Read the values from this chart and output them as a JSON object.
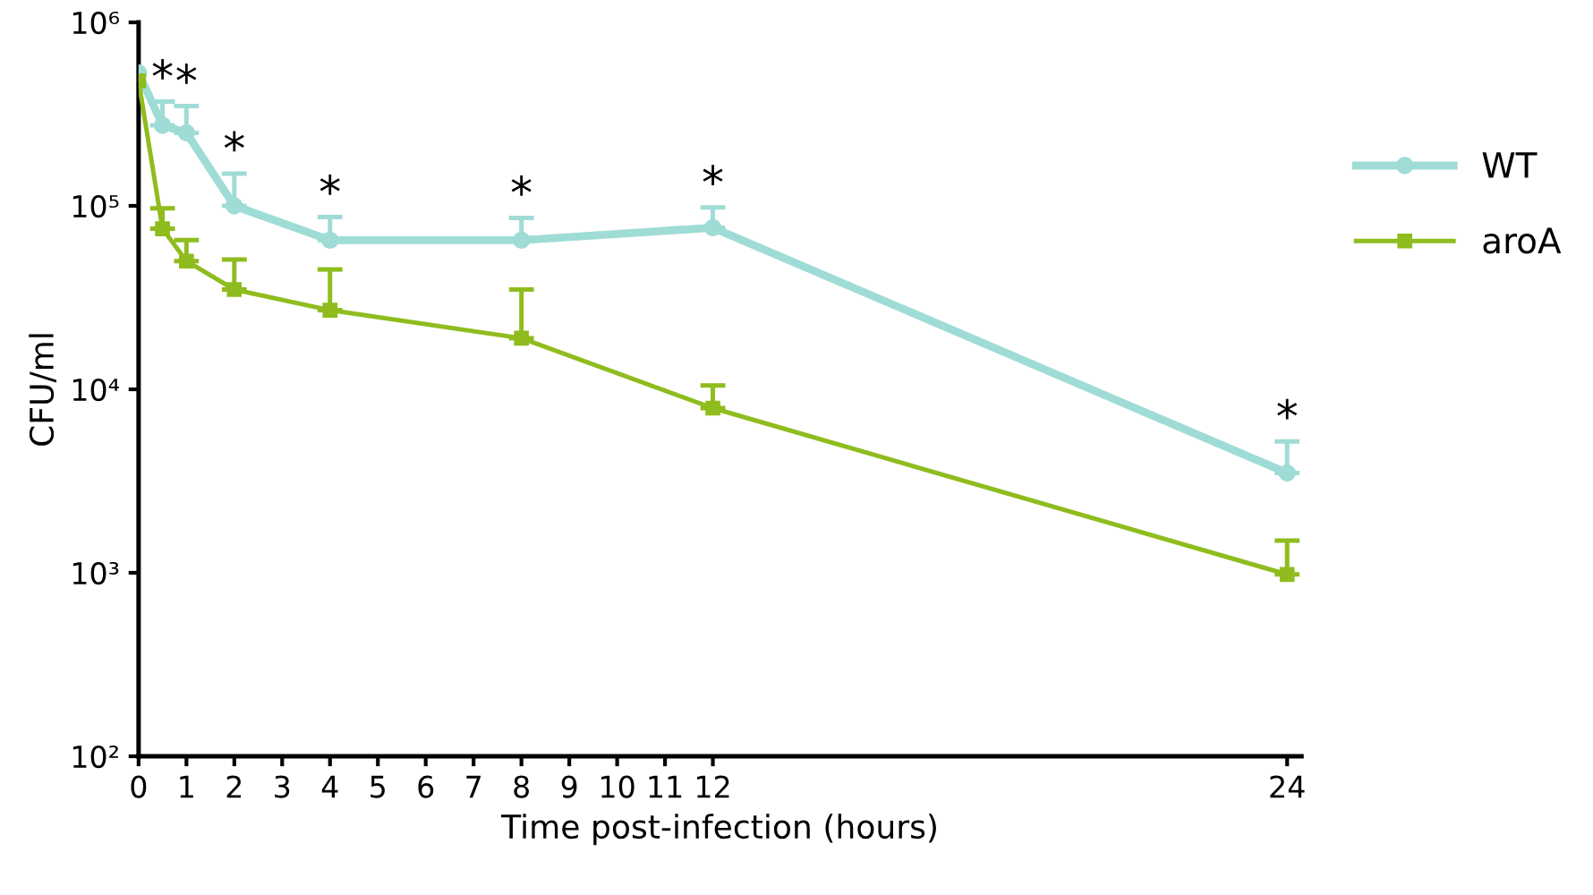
{
  "chart_data": {
    "type": "line",
    "xlabel": "Time post-infection (hours)",
    "ylabel": "CFU/ml",
    "log": "y",
    "grid": false,
    "legend": "right",
    "line_style": "solid",
    "xlim": [
      0,
      24.3
    ],
    "xticks": [
      0,
      1,
      2,
      3,
      4,
      5,
      6,
      7,
      8,
      9,
      10,
      11,
      12,
      24
    ],
    "ylim": [
      100,
      1000000
    ],
    "yticks": [
      {
        "value": 100,
        "label": "10²"
      },
      {
        "value": 1000,
        "label": "10³"
      },
      {
        "value": 10000,
        "label": "10⁴"
      },
      {
        "value": 100000,
        "label": "10⁵"
      },
      {
        "value": 1000000,
        "label": "10⁶"
      }
    ],
    "series": [
      {
        "name": "WT",
        "color": "#9fdcd6",
        "marker": "circle",
        "x": [
          0,
          0.5,
          1,
          2,
          4,
          8,
          12,
          24
        ],
        "values": [
          530000,
          275000,
          250000,
          100000,
          65000,
          65000,
          76000,
          3500
        ],
        "errors": [
          null,
          [
            275000,
            370000
          ],
          [
            250000,
            350000
          ],
          [
            100000,
            150000
          ],
          [
            65000,
            87000
          ],
          [
            65000,
            86000
          ],
          [
            76000,
            98000
          ],
          [
            3500,
            5200
          ]
        ]
      },
      {
        "name": "aroA",
        "color": "#8fbc1e",
        "marker": "square",
        "x": [
          0,
          0.5,
          1,
          2,
          4,
          8,
          12,
          24
        ],
        "values": [
          480000,
          75000,
          50000,
          35000,
          27000,
          19000,
          7900,
          980
        ],
        "errors": [
          null,
          [
            75000,
            97000
          ],
          [
            50000,
            65000
          ],
          [
            35000,
            51000
          ],
          [
            27000,
            45000
          ],
          [
            19000,
            35000
          ],
          [
            7900,
            10500
          ],
          [
            980,
            1500
          ]
        ]
      }
    ],
    "annotations": [
      {
        "text": "*",
        "x": 0.5,
        "y": 370000
      },
      {
        "text": "*",
        "x": 1,
        "y": 350000
      },
      {
        "text": "*",
        "x": 2,
        "y": 150000
      },
      {
        "text": "*",
        "x": 4,
        "y": 87000
      },
      {
        "text": "*",
        "x": 8,
        "y": 86000
      },
      {
        "text": "*",
        "x": 12,
        "y": 98000
      },
      {
        "text": "*",
        "x": 24,
        "y": 5200
      }
    ]
  }
}
